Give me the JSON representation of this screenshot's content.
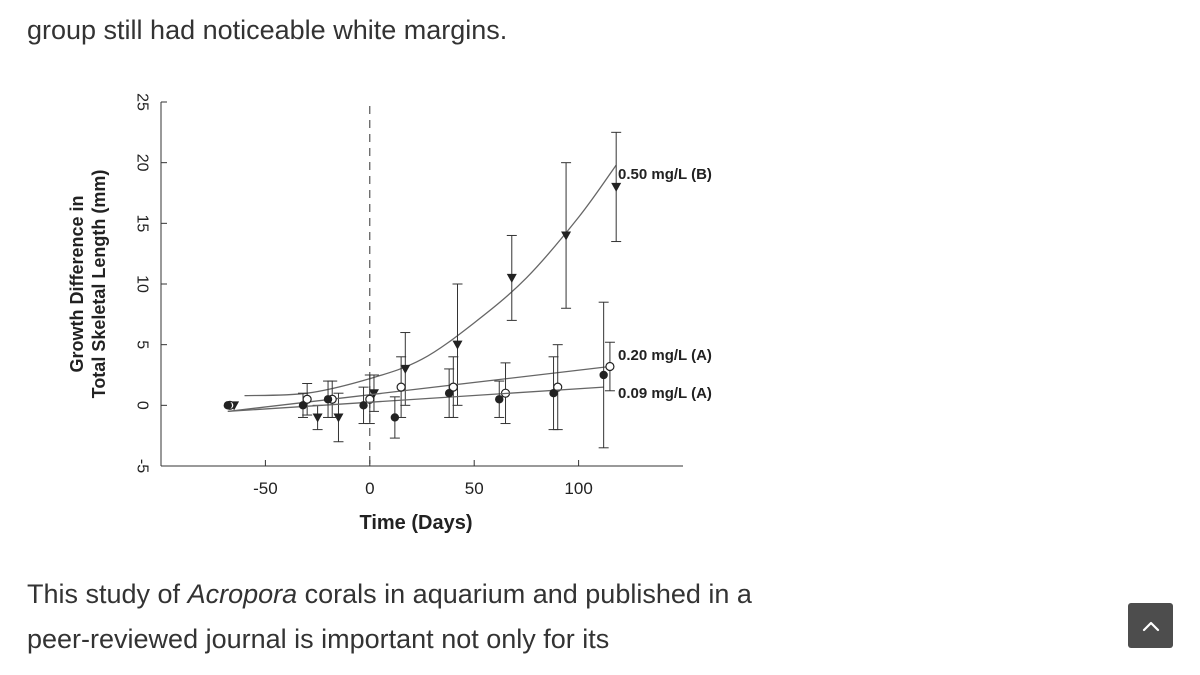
{
  "article": {
    "paragraph_above": "group still had noticeable white margins.",
    "paragraph_below": {
      "before_em": "This study of ",
      "em": "Acropora",
      "after_em": " corals in aquarium and published in a peer-reviewed journal is important not only for its"
    }
  },
  "scroll_top_button": {
    "icon": "chevron-up-icon",
    "color": "#4d4d4d"
  },
  "chart_data": {
    "type": "line",
    "xlabel": "Time (Days)",
    "ylabel_lines": [
      "Growth Difference in",
      "Total Skeletal Length (mm)"
    ],
    "xlim": [
      -100,
      150
    ],
    "ylim": [
      -5,
      25
    ],
    "xticks": [
      -50,
      0,
      50,
      100
    ],
    "yticks": [
      25,
      20,
      15,
      10,
      5,
      0,
      -5
    ],
    "reference_line_x": 0,
    "grid": false,
    "series": [
      {
        "name": "0.50 mg/L (B)",
        "marker": "triangle-down",
        "points": [
          {
            "x": -65,
            "y": 0,
            "err": 0
          },
          {
            "x": -25,
            "y": -1,
            "err": 1
          },
          {
            "x": -15,
            "y": -1,
            "err": 2
          },
          {
            "x": 2,
            "y": 1,
            "err": 1.5
          },
          {
            "x": 17,
            "y": 3,
            "err": 3
          },
          {
            "x": 42,
            "y": 5,
            "err": 5
          },
          {
            "x": 68,
            "y": 10.5,
            "err": 3.5
          },
          {
            "x": 94,
            "y": 14,
            "err": 6
          },
          {
            "x": 118,
            "y": 18,
            "err": 4.5
          }
        ],
        "fit": [
          [
            -60,
            0.8
          ],
          [
            -30,
            1.0
          ],
          [
            0,
            2.2
          ],
          [
            25,
            3.8
          ],
          [
            50,
            6.8
          ],
          [
            75,
            10.5
          ],
          [
            100,
            15.5
          ],
          [
            118,
            19.8
          ]
        ]
      },
      {
        "name": "0.20 mg/L  (A)",
        "marker": "circle-open",
        "points": [
          {
            "x": -67,
            "y": 0,
            "err": 0
          },
          {
            "x": -30,
            "y": 0.5,
            "err": 1.3
          },
          {
            "x": -18,
            "y": 0.5,
            "err": 1.5
          },
          {
            "x": 0,
            "y": 0.5,
            "err": 2
          },
          {
            "x": 15,
            "y": 1.5,
            "err": 2.5
          },
          {
            "x": 40,
            "y": 1.5,
            "err": 2.5
          },
          {
            "x": 65,
            "y": 1,
            "err": 2.5
          },
          {
            "x": 90,
            "y": 1.5,
            "err": 3.5
          },
          {
            "x": 115,
            "y": 3.2,
            "err": 2
          }
        ],
        "fit": [
          [
            -68,
            -0.5
          ],
          [
            115,
            3.2
          ]
        ]
      },
      {
        "name": "0.09 mg/L  (A)",
        "marker": "circle-filled",
        "points": [
          {
            "x": -68,
            "y": 0,
            "err": 0
          },
          {
            "x": -32,
            "y": 0,
            "err": 1
          },
          {
            "x": -20,
            "y": 0.5,
            "err": 1.5
          },
          {
            "x": -3,
            "y": 0,
            "err": 1.5
          },
          {
            "x": 12,
            "y": -1,
            "err": 1.7
          },
          {
            "x": 38,
            "y": 1,
            "err": 2
          },
          {
            "x": 62,
            "y": 0.5,
            "err": 1.5
          },
          {
            "x": 88,
            "y": 1,
            "err": 3
          },
          {
            "x": 112,
            "y": 2.5,
            "err": 6
          }
        ],
        "fit": [
          [
            -68,
            -0.5
          ],
          [
            112,
            1.5
          ]
        ]
      }
    ]
  }
}
